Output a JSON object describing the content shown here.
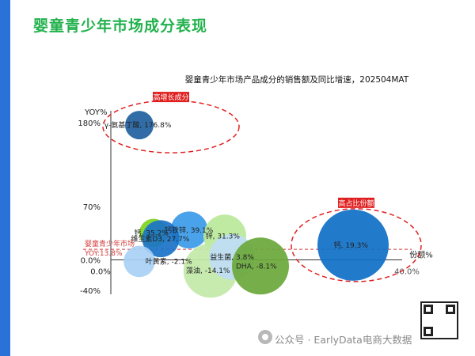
{
  "slide": {
    "title": "婴童青少年市场成分表现",
    "accent_color": "#2b72d8",
    "title_color": "#23b14d"
  },
  "watermark": {
    "text": "公众号 · EarlyData电商大数据"
  },
  "chart_data": {
    "type": "bubble",
    "title": "婴童青少年市场产品成分的销售额及同比增速，202504MAT",
    "ylabel": "YOY%",
    "xlabel": "份额%",
    "xlim": [
      0,
      40
    ],
    "ylim": [
      -40,
      180
    ],
    "y_ticks": [
      "180%",
      "70%",
      "0.0%",
      "-40%"
    ],
    "x_ticks": [
      "0.0%",
      "40.0%"
    ],
    "reference_line": {
      "label_line1": "婴童青少年市场",
      "label_line2": "YOY:13.8%",
      "y": 13.8
    },
    "annotations": [
      {
        "text": "高增长成分",
        "color": "#e02020"
      },
      {
        "text": "高占比份额",
        "color": "#e02020"
      }
    ],
    "points": [
      {
        "label": "γ-氨基丁酸, 176.8%",
        "x": 4,
        "y": 176.8,
        "size": 1.0,
        "color": "#1f5f9e"
      },
      {
        "label": "钙, 35.2%",
        "x": 6,
        "y": 35.2,
        "size": 1.0,
        "color": "#7ed321"
      },
      {
        "label": "钙铁锌, 39.1%",
        "x": 11,
        "y": 39.1,
        "size": 1.3,
        "color": "#3a9ae8"
      },
      {
        "label": "维生素D3, 27.7%",
        "x": 7,
        "y": 27.7,
        "size": 1.3,
        "color": "#1a73c8"
      },
      {
        "label": "锌, 31.3%",
        "x": 16,
        "y": 31.3,
        "size": 1.5,
        "color": "#b9e89a"
      },
      {
        "label": "叶黄素, -2.1%",
        "x": 4,
        "y": -2.1,
        "size": 1.1,
        "color": "#a8d0f5"
      },
      {
        "label": "藻油, -14.1%",
        "x": 14,
        "y": -14.1,
        "size": 1.9,
        "color": "#c2e8a8"
      },
      {
        "label": "益生菌, 3.8%",
        "x": 17,
        "y": 3.8,
        "size": 1.6,
        "color": "#bfdcf5"
      },
      {
        "label": "DHA, -8.1%",
        "x": 21,
        "y": -8.1,
        "size": 2.0,
        "color": "#6aa83a"
      },
      {
        "label": "钙, 19.3%",
        "x": 34,
        "y": 19.3,
        "size": 2.5,
        "color": "#0f6fc6"
      }
    ]
  }
}
